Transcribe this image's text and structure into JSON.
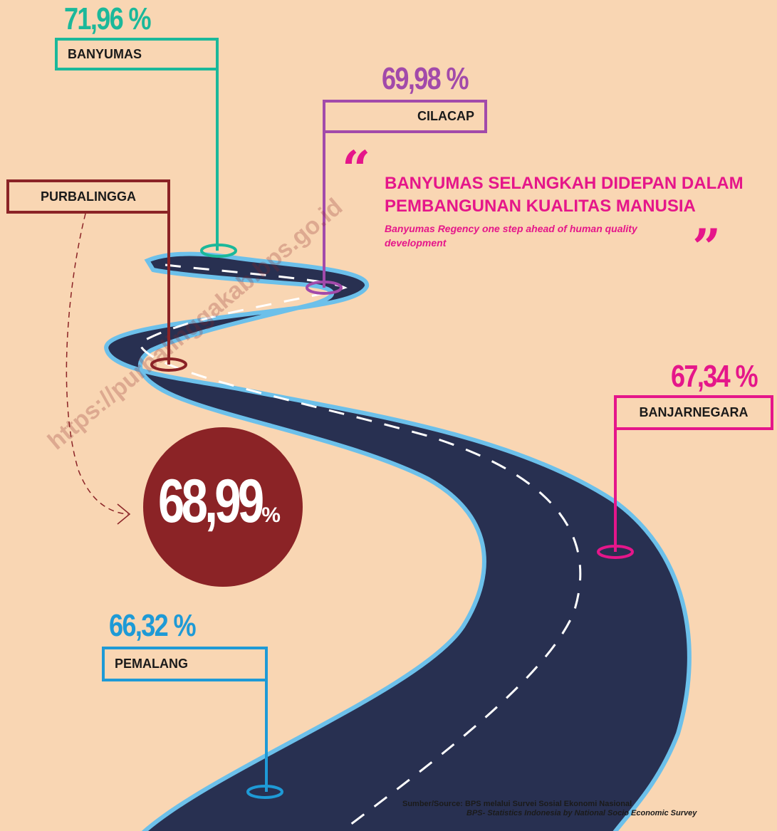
{
  "watermark": "https://purbalinggakab.bps.go.id",
  "regions": [
    {
      "name": "BANYUMAS",
      "value": "71,96 %"
    },
    {
      "name": "CILACAP",
      "value": "69,98 %"
    },
    {
      "name": "PURBALINGGA"
    },
    {
      "name": "BANJARNEGARA",
      "value": "67,34 %"
    },
    {
      "name": "PEMALANG",
      "value": "66,32 %"
    }
  ],
  "highlight": {
    "value": "68,99",
    "unit": "%"
  },
  "quote": {
    "open_mark": "“",
    "close_mark": "”",
    "title": [
      "BANYUMAS SELANGKAH DIDEPAN DALAM",
      "PEMBANGUNAN KUALITAS MANUSIA"
    ],
    "subtitle": [
      "Banyumas Regency one step ahead of human quality",
      "development"
    ]
  },
  "source": [
    "Sumber/Source: BPS melalui Survei Sosial Ekonomi Nasional",
    "BPS- Statistics Indonesia by National Socio Economic Survey"
  ]
}
